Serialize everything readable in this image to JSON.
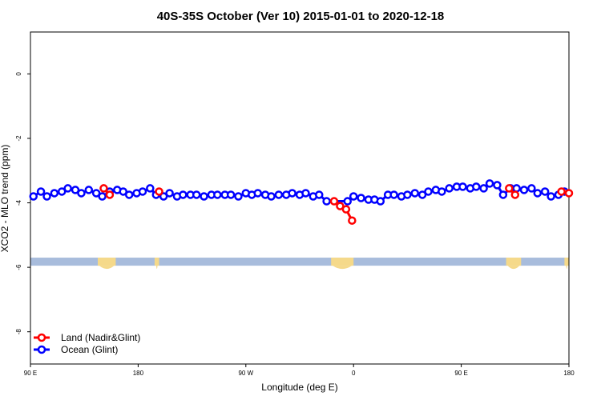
{
  "chart_data": {
    "type": "line",
    "title": "40S-35S October (Ver 10)   2015-01-01 to 2020-12-18",
    "xlabel": "Longitude (deg E)",
    "ylabel": "XCO2 - MLO trend (ppm)",
    "xlim": [
      90,
      450
    ],
    "ylim": [
      -9.0,
      1.3
    ],
    "x_ticks": [
      {
        "value": 90,
        "label": "90 E"
      },
      {
        "value": 180,
        "label": "180"
      },
      {
        "value": 270,
        "label": "90 W"
      },
      {
        "value": 360,
        "label": "0"
      },
      {
        "value": 450,
        "label": "90 E"
      },
      {
        "value": 540,
        "label": "180"
      }
    ],
    "y_ticks": [
      {
        "value": 0,
        "label": "0"
      },
      {
        "value": -2,
        "label": "-2"
      },
      {
        "value": -4,
        "label": "-4"
      },
      {
        "value": -6,
        "label": "-6"
      },
      {
        "value": -8,
        "label": "-8"
      }
    ],
    "legend_position": "bottom-left",
    "land_band": {
      "y_top": -5.7,
      "y_bottom": -5.95,
      "ocean_color": "#a8bcdc",
      "land_color": "#f5d98a"
    },
    "land_segments": [
      [
        135,
        147
      ],
      [
        173,
        176
      ],
      [
        291,
        306
      ],
      [
        408,
        418
      ],
      [
        447,
        450
      ]
    ],
    "series": [
      {
        "name": "Land (Nadir&Glint)",
        "color": "#ff0000",
        "x": [
          139,
          143,
          176,
          293,
          297,
          301,
          305,
          410,
          414,
          445,
          450
        ],
        "y": [
          -3.55,
          -3.75,
          -3.65,
          -3.95,
          -4.1,
          -4.2,
          -4.55,
          -3.55,
          -3.75,
          -3.65,
          -3.7
        ]
      },
      {
        "name": "Ocean (Glint)",
        "color": "#0000ff",
        "x": [
          92,
          97,
          101,
          106,
          111,
          115,
          120,
          124,
          129,
          134,
          138,
          143,
          148,
          152,
          156,
          161,
          165,
          170,
          174,
          179,
          183,
          188,
          192,
          197,
          201,
          206,
          211,
          215,
          220,
          224,
          229,
          234,
          238,
          242,
          247,
          251,
          256,
          261,
          265,
          270,
          274,
          279,
          283,
          288,
          302,
          306,
          311,
          316,
          320,
          324,
          329,
          333,
          338,
          342,
          347,
          352,
          356,
          361,
          365,
          370,
          375,
          379,
          384,
          388,
          393,
          397,
          402,
          406,
          411,
          415,
          420,
          425,
          429,
          434,
          438,
          443,
          447
        ],
        "y": [
          -3.8,
          -3.65,
          -3.8,
          -3.7,
          -3.65,
          -3.55,
          -3.6,
          -3.7,
          -3.6,
          -3.7,
          -3.8,
          -3.65,
          -3.6,
          -3.65,
          -3.75,
          -3.7,
          -3.65,
          -3.55,
          -3.75,
          -3.8,
          -3.7,
          -3.8,
          -3.75,
          -3.75,
          -3.75,
          -3.8,
          -3.75,
          -3.75,
          -3.75,
          -3.75,
          -3.8,
          -3.7,
          -3.75,
          -3.7,
          -3.75,
          -3.8,
          -3.75,
          -3.75,
          -3.7,
          -3.75,
          -3.7,
          -3.8,
          -3.75,
          -3.95,
          -3.95,
          -3.8,
          -3.85,
          -3.9,
          -3.9,
          -3.95,
          -3.75,
          -3.75,
          -3.8,
          -3.75,
          -3.7,
          -3.75,
          -3.65,
          -3.6,
          -3.65,
          -3.55,
          -3.5,
          -3.5,
          -3.55,
          -3.5,
          -3.55,
          -3.4,
          -3.45,
          -3.75,
          -3.55,
          -3.55,
          -3.6,
          -3.55,
          -3.7,
          -3.65,
          -3.8,
          -3.75,
          -3.65
        ]
      }
    ]
  }
}
